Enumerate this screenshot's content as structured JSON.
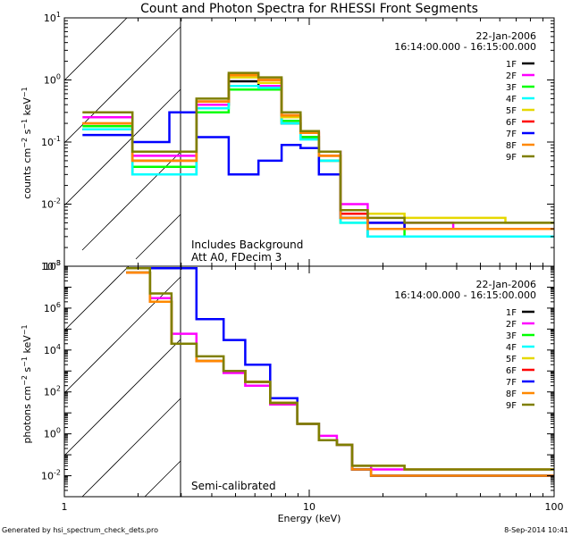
{
  "figure": {
    "title": "Count and Photon Spectra for RHESSI Front Segments",
    "footer_left": "Generated by hsi_spectrum_check_dets.pro",
    "footer_right": "8-Sep-2014 10:41",
    "xlabel": "Energy (keV)"
  },
  "colors": {
    "1F": "#000000",
    "2F": "#ff00ff",
    "3F": "#00ff00",
    "4F": "#00ffff",
    "5F": "#e6d800",
    "6F": "#ff0000",
    "7F": "#0000ff",
    "8F": "#ff8800",
    "9F": "#7f7f00"
  },
  "chart_data": [
    {
      "type": "line",
      "title": "Count and Photon Spectra for RHESSI Front Segments",
      "ylabel": "counts cm^-2 s^-1 keV^-1",
      "xlabel": "",
      "xscale": "log",
      "yscale": "log",
      "xlim": [
        1,
        100
      ],
      "ylim": [
        0.001,
        10
      ],
      "x_ticks": [
        "1",
        "10",
        "100"
      ],
      "y_ticks": [
        "10^-3",
        "10^-2",
        "10^-1",
        "10^0",
        "10^1"
      ],
      "date": "22-Jan-2006",
      "time_range": "16:14:00.000 - 16:15:00.000",
      "annotations": [
        "Includes Background",
        "Att A0, FDecim 3"
      ],
      "hatched_region_keV": [
        1,
        3
      ],
      "legend_position": "top-right",
      "series": [
        {
          "name": "1F",
          "x": [
            1.5,
            2.4,
            3,
            4,
            5.5,
            7,
            8.5,
            10,
            12,
            15,
            20,
            30,
            50,
            80
          ],
          "y": [
            0.16,
            0.03,
            0.03,
            0.4,
            0.95,
            0.8,
            0.2,
            0.12,
            0.05,
            0.006,
            0.003,
            0.003,
            0.003,
            0.003
          ]
        },
        {
          "name": "2F",
          "x": [
            1.5,
            2.4,
            3,
            4,
            5.5,
            7,
            8.5,
            10,
            12,
            15,
            20,
            30,
            50,
            80
          ],
          "y": [
            0.25,
            0.06,
            0.06,
            0.4,
            0.8,
            0.8,
            0.25,
            0.15,
            0.07,
            0.01,
            0.005,
            0.005,
            0.004,
            0.004
          ]
        },
        {
          "name": "3F",
          "x": [
            1.5,
            2.4,
            3,
            4,
            5.5,
            7,
            8.5,
            10,
            12,
            15,
            20,
            30,
            50,
            80
          ],
          "y": [
            0.18,
            0.04,
            0.04,
            0.3,
            0.7,
            0.7,
            0.22,
            0.12,
            0.05,
            0.005,
            0.004,
            0.003,
            0.003,
            0.003
          ]
        },
        {
          "name": "4F",
          "x": [
            1.5,
            2.4,
            3,
            4,
            5.5,
            7,
            8.5,
            10,
            12,
            15,
            20,
            30,
            50,
            80
          ],
          "y": [
            0.16,
            0.03,
            0.03,
            0.35,
            0.8,
            0.75,
            0.2,
            0.11,
            0.05,
            0.005,
            0.003,
            0.003,
            0.003,
            0.003
          ]
        },
        {
          "name": "5F",
          "x": [
            1.5,
            2.4,
            3,
            4,
            5.5,
            7,
            8.5,
            10,
            12,
            15,
            20,
            30,
            50,
            80
          ],
          "y": [
            0.2,
            0.05,
            0.05,
            0.45,
            1.1,
            0.9,
            0.25,
            0.14,
            0.06,
            0.008,
            0.007,
            0.006,
            0.006,
            0.005
          ]
        },
        {
          "name": "6F",
          "x": [
            1.5,
            2.4,
            3,
            4,
            5.5,
            7,
            8.5,
            10,
            12,
            15,
            20,
            30,
            50,
            80
          ],
          "y": [
            0.2,
            0.05,
            0.05,
            0.45,
            1.2,
            1.0,
            0.27,
            0.14,
            0.06,
            0.007,
            0.005,
            0.004,
            0.004,
            0.004
          ]
        },
        {
          "name": "7F",
          "x": [
            1.5,
            2.4,
            3,
            4,
            5.5,
            7,
            8.5,
            10,
            12,
            15,
            20,
            30,
            50,
            80
          ],
          "y": [
            0.13,
            0.1,
            0.3,
            0.12,
            0.03,
            0.05,
            0.09,
            0.08,
            0.03,
            0.006,
            0.005,
            0.004,
            0.004,
            0.004
          ]
        },
        {
          "name": "8F",
          "x": [
            1.5,
            2.4,
            3,
            4,
            5.5,
            7,
            8.5,
            10,
            12,
            15,
            20,
            30,
            50,
            80
          ],
          "y": [
            0.2,
            0.05,
            0.05,
            0.45,
            1.2,
            1.0,
            0.27,
            0.14,
            0.06,
            0.006,
            0.004,
            0.004,
            0.004,
            0.004
          ]
        },
        {
          "name": "9F",
          "x": [
            1.5,
            2.4,
            3,
            4,
            5.5,
            7,
            8.5,
            10,
            12,
            15,
            20,
            30,
            50,
            80
          ],
          "y": [
            0.3,
            0.07,
            0.07,
            0.5,
            1.3,
            1.1,
            0.3,
            0.15,
            0.07,
            0.008,
            0.006,
            0.005,
            0.005,
            0.005
          ]
        }
      ]
    },
    {
      "type": "line",
      "ylabel": "photons cm^-2 s^-1 keV^-1",
      "xlabel": "Energy (keV)",
      "xscale": "log",
      "yscale": "log",
      "xlim": [
        1,
        100
      ],
      "ylim": [
        0.001,
        100000000
      ],
      "x_ticks": [
        "1",
        "10",
        "100"
      ],
      "y_ticks": [
        "10^-2",
        "10^0",
        "10^2",
        "10^4",
        "10^6",
        "10^8"
      ],
      "date": "22-Jan-2006",
      "time_range": "16:14:00.000 - 16:15:00.000",
      "annotations": [
        "Semi-calibrated"
      ],
      "hatched_region_keV": [
        1,
        3
      ],
      "legend_position": "top-right",
      "series": [
        {
          "name": "1F",
          "x": [
            2,
            2.5,
            3,
            4,
            5,
            6,
            8,
            10,
            12,
            14,
            16,
            20,
            30,
            50,
            80
          ],
          "y": [
            50000000,
            2000000,
            20000,
            3000,
            1000,
            300,
            30,
            3,
            0.5,
            0.3,
            0.02,
            0.01,
            0.01,
            0.01,
            0.01
          ]
        },
        {
          "name": "2F",
          "x": [
            2,
            2.5,
            3,
            4,
            5,
            6,
            8,
            10,
            12,
            14,
            16,
            20,
            30,
            50,
            80
          ],
          "y": [
            50000000,
            3000000,
            60000,
            3000,
            800,
            200,
            25,
            3,
            0.8,
            0.3,
            0.03,
            0.02,
            0.02,
            0.02,
            0.02
          ]
        },
        {
          "name": "3F",
          "x": [
            2,
            2.5,
            3,
            4,
            5,
            6,
            8,
            10,
            12,
            14,
            16,
            20,
            30,
            50,
            80
          ],
          "y": [
            50000000,
            2000000,
            20000,
            3000,
            1000,
            300,
            30,
            3,
            0.5,
            0.3,
            0.02,
            0.01,
            0.01,
            0.01,
            0.01
          ]
        },
        {
          "name": "4F",
          "x": [
            2,
            2.5,
            3,
            4,
            5,
            6,
            8,
            10,
            12,
            14,
            16,
            20,
            30,
            50,
            80
          ],
          "y": [
            50000000,
            2000000,
            20000,
            3000,
            1000,
            300,
            30,
            3,
            0.5,
            0.3,
            0.02,
            0.01,
            0.01,
            0.01,
            0.01
          ]
        },
        {
          "name": "5F",
          "x": [
            2,
            2.5,
            3,
            4,
            5,
            6,
            8,
            10,
            12,
            14,
            16,
            20,
            30,
            50,
            80
          ],
          "y": [
            50000000,
            2000000,
            20000,
            3000,
            1000,
            300,
            30,
            3,
            0.5,
            0.3,
            0.03,
            0.03,
            0.02,
            0.02,
            0.02
          ]
        },
        {
          "name": "6F",
          "x": [
            2,
            2.5,
            3,
            4,
            5,
            6,
            8,
            10,
            12,
            14,
            16,
            20,
            30,
            50,
            80
          ],
          "y": [
            50000000,
            2000000,
            20000,
            3000,
            1000,
            300,
            30,
            3,
            0.5,
            0.3,
            0.02,
            0.01,
            0.01,
            0.01,
            0.01
          ]
        },
        {
          "name": "7F",
          "x": [
            2,
            2.5,
            3,
            4,
            5,
            6,
            8,
            10,
            12,
            14,
            16,
            20,
            30,
            50,
            80
          ],
          "y": [
            80000000,
            80000000,
            80000000,
            300000,
            30000,
            2000,
            50,
            3,
            0.5,
            0.3,
            0.02,
            0.01,
            0.01,
            0.01,
            0.01
          ]
        },
        {
          "name": "8F",
          "x": [
            2,
            2.5,
            3,
            4,
            5,
            6,
            8,
            10,
            12,
            14,
            16,
            20,
            30,
            50,
            80
          ],
          "y": [
            50000000,
            2000000,
            20000,
            3000,
            1000,
            300,
            30,
            3,
            0.5,
            0.3,
            0.02,
            0.01,
            0.01,
            0.01,
            0.01
          ]
        },
        {
          "name": "9F",
          "x": [
            2,
            2.5,
            3,
            4,
            5,
            6,
            8,
            10,
            12,
            14,
            16,
            20,
            30,
            50,
            80
          ],
          "y": [
            80000000,
            5000000,
            20000,
            5000,
            1000,
            300,
            30,
            3,
            0.5,
            0.3,
            0.03,
            0.03,
            0.02,
            0.02,
            0.02
          ]
        }
      ]
    }
  ]
}
